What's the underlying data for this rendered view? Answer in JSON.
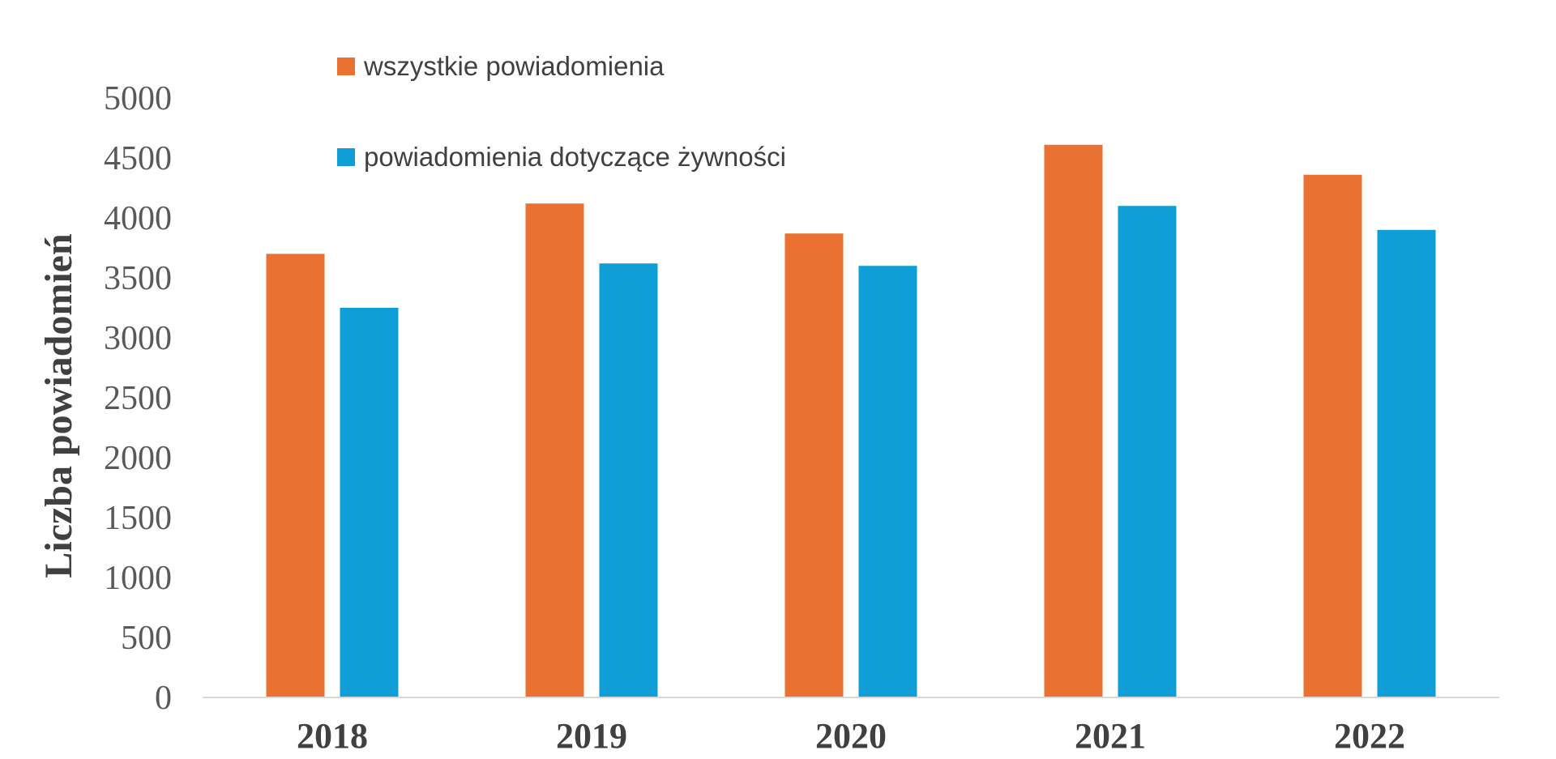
{
  "chart_data": {
    "type": "bar",
    "title": "",
    "xlabel": "",
    "ylabel": "Liczba powiadomień",
    "ylim": [
      0,
      5000
    ],
    "yticks": [
      0,
      500,
      1000,
      1500,
      2000,
      2500,
      3000,
      3500,
      4000,
      4500,
      5000
    ],
    "grid": false,
    "legend_position": "top",
    "categories": [
      "2018",
      "2019",
      "2020",
      "2021",
      "2022"
    ],
    "series": [
      {
        "name": "wszystkie powiadomienia",
        "color": "#E97132",
        "values": [
          3700,
          4120,
          3870,
          4610,
          4360
        ]
      },
      {
        "name": "powiadomienia dotyczące żywności",
        "color": "#0F9ED5",
        "values": [
          3250,
          3620,
          3600,
          4100,
          3900
        ]
      }
    ]
  }
}
